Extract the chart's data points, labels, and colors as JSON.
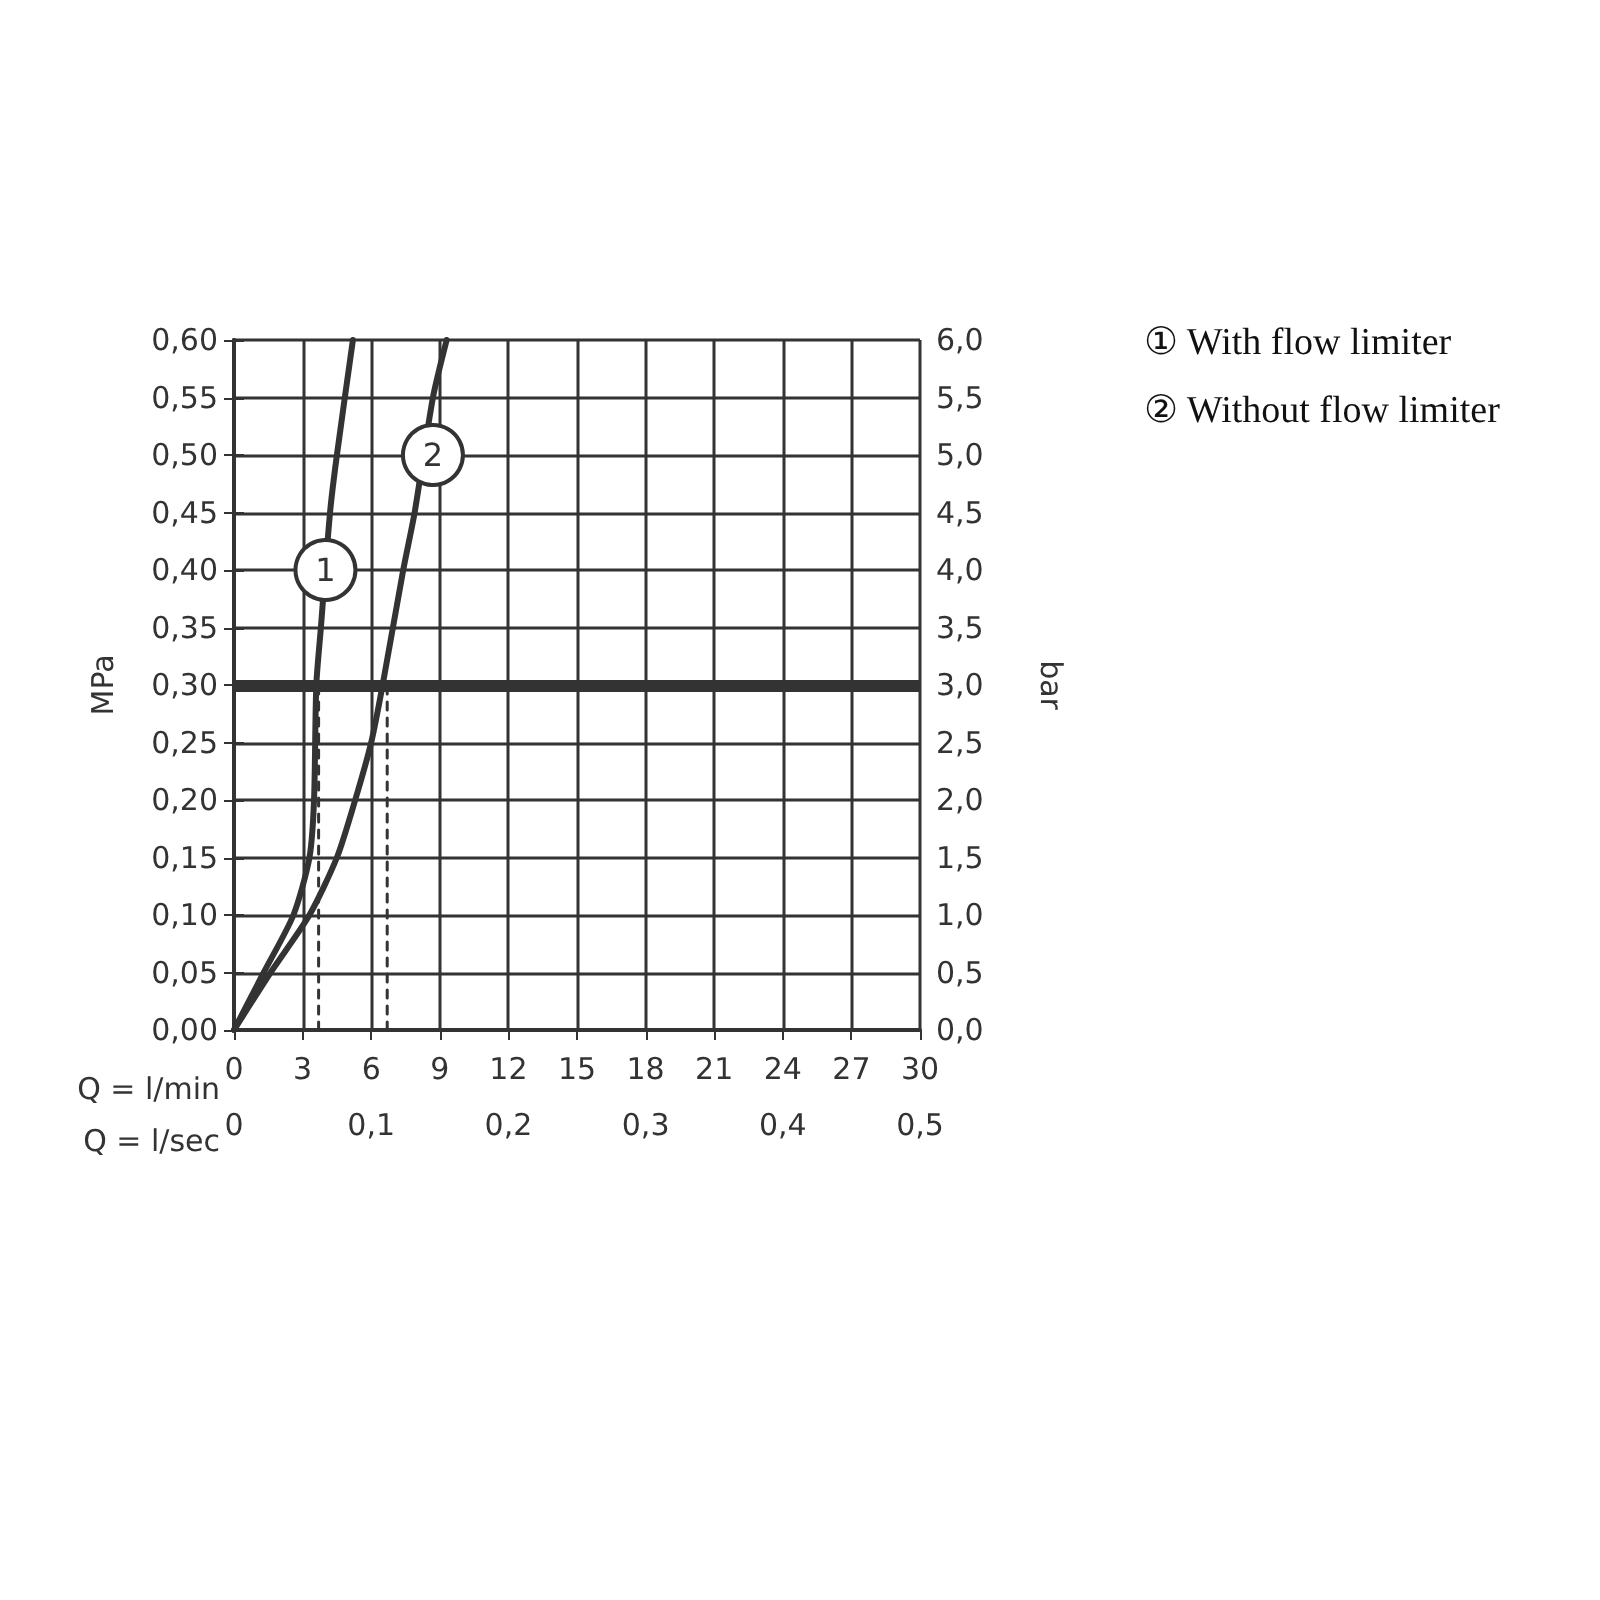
{
  "chart_data": {
    "type": "line",
    "xlabel": "Q = l/min",
    "x2label": "Q = l/sec",
    "ylabel": "MPa",
    "y2label": "bar",
    "xlim": [
      0,
      30
    ],
    "xticks": [
      0,
      3,
      6,
      9,
      12,
      15,
      18,
      21,
      24,
      27,
      30
    ],
    "x2lim": [
      0,
      0.5
    ],
    "x2ticks": [
      0,
      {
        "value": 0.1,
        "label": "0,1"
      },
      {
        "value": 0.2,
        "label": "0,2"
      },
      {
        "value": 0.3,
        "label": "0,3"
      },
      {
        "value": 0.4,
        "label": "0,4"
      },
      {
        "value": 0.5,
        "label": "0,5"
      }
    ],
    "ylim": [
      0,
      0.6
    ],
    "yticks": [
      {
        "value": 0,
        "label": "0,00"
      },
      {
        "value": 0.05,
        "label": "0,05"
      },
      {
        "value": 0.1,
        "label": "0,10"
      },
      {
        "value": 0.15,
        "label": "0,15"
      },
      {
        "value": 0.2,
        "label": "0,20"
      },
      {
        "value": 0.25,
        "label": "0,25"
      },
      {
        "value": 0.3,
        "label": "0,30"
      },
      {
        "value": 0.35,
        "label": "0,35"
      },
      {
        "value": 0.4,
        "label": "0,40"
      },
      {
        "value": 0.45,
        "label": "0,45"
      },
      {
        "value": 0.5,
        "label": "0,50"
      },
      {
        "value": 0.55,
        "label": "0,55"
      },
      {
        "value": 0.6,
        "label": "0,60"
      }
    ],
    "y2lim": [
      0,
      6
    ],
    "y2ticks": [
      {
        "value": 0,
        "label": "0,0"
      },
      {
        "value": 0.5,
        "label": "0,5"
      },
      {
        "value": 1,
        "label": "1,0"
      },
      {
        "value": 1.5,
        "label": "1,5"
      },
      {
        "value": 2,
        "label": "2,0"
      },
      {
        "value": 2.5,
        "label": "2,5"
      },
      {
        "value": 3,
        "label": "3,0"
      },
      {
        "value": 3.5,
        "label": "3,5"
      },
      {
        "value": 4,
        "label": "4,0"
      },
      {
        "value": 4.5,
        "label": "4,5"
      },
      {
        "value": 5,
        "label": "5,0"
      },
      {
        "value": 5.5,
        "label": "5,5"
      },
      {
        "value": 6,
        "label": "6,0"
      }
    ],
    "series": [
      {
        "color": "#333333",
        "x": [
          0,
          1.3,
          2.6,
          3.3,
          3.5,
          3.6,
          3.8,
          4.2,
          4.5,
          5.2
        ],
        "values": [
          0,
          0.05,
          0.1,
          0.15,
          0.2,
          0.3,
          0.35,
          0.45,
          0.5,
          0.6
        ]
      },
      {
        "color": "#333333",
        "x": [
          0,
          1.6,
          3.3,
          4.5,
          5.3,
          6.0,
          6.5,
          7.4,
          7.9,
          8.7,
          9.3
        ],
        "values": [
          0,
          0.05,
          0.1,
          0.15,
          0.2,
          0.25,
          0.3,
          0.4,
          0.45,
          0.55,
          0.6
        ]
      },
      {
        "color": "#333333",
        "line_style": "dashed",
        "x": [
          3.7,
          3.7
        ],
        "values": [
          0,
          0.3
        ]
      },
      {
        "color": "#333333",
        "line_style": "dashed",
        "x": [
          6.7,
          6.7
        ],
        "values": [
          0,
          0.3
        ]
      }
    ],
    "ref_lines": [
      {
        "axis": "y",
        "value": 0.3,
        "color": "#333333"
      }
    ],
    "annotations": [
      {
        "text": "1",
        "x": 4,
        "y": 0.4
      },
      {
        "text": "2",
        "x": 8.7,
        "y": 0.5
      },
      "① With flow limiter",
      "② Without flow limiter"
    ],
    "grid": true,
    "marker": "none"
  }
}
